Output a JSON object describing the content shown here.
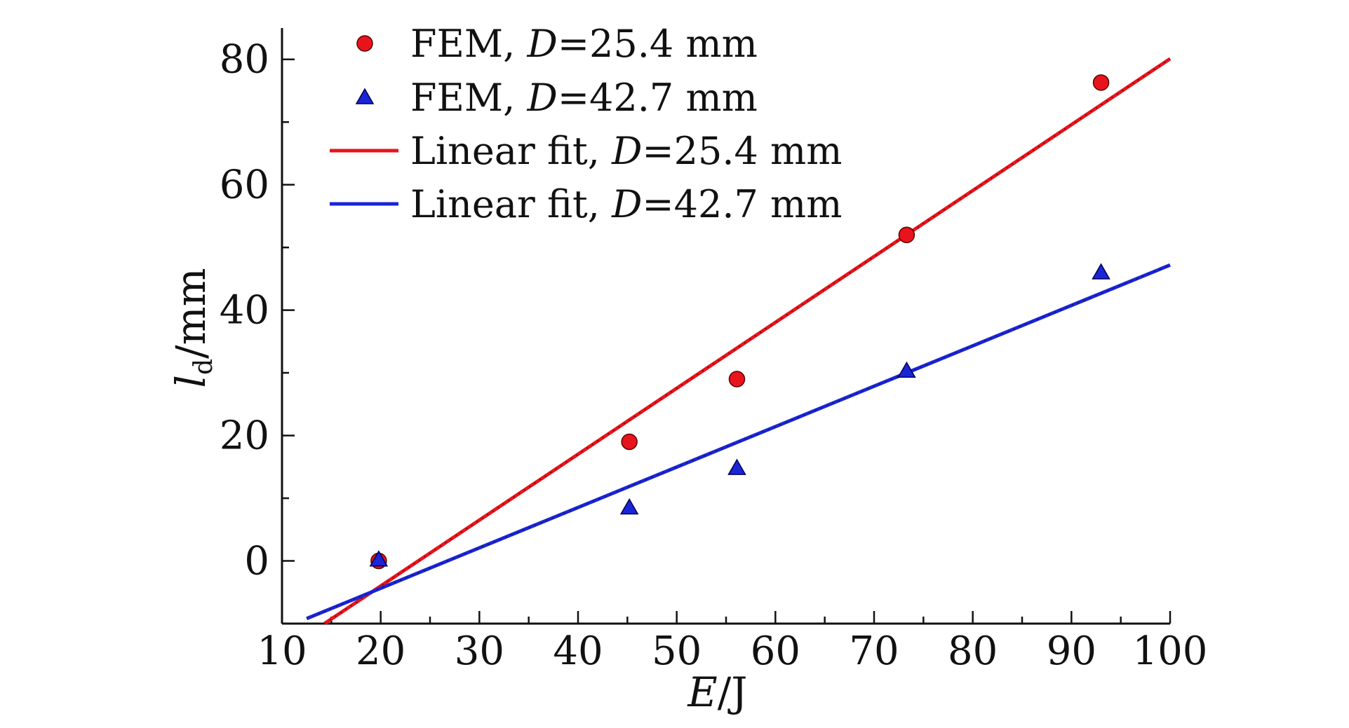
{
  "chart_data": {
    "type": "scatter",
    "xlabel": {
      "italic": "E",
      "rest": "/J"
    },
    "ylabel": {
      "italic": "l",
      "sub": "d",
      "rest": "/mm"
    },
    "xlim": [
      10,
      100
    ],
    "ylim": [
      -10,
      85
    ],
    "x_ticks": [
      10,
      20,
      30,
      40,
      50,
      60,
      70,
      80,
      90,
      100
    ],
    "y_ticks": [
      0,
      20,
      40,
      60,
      80
    ],
    "grid": false,
    "legend_position": "top-left",
    "colors": {
      "red": "#e8141c",
      "blue": "#1a25d6",
      "black": "#111111"
    },
    "series": [
      {
        "kind": "scatter",
        "marker": "circle",
        "color": "#e8141c",
        "label": {
          "pre": "FEM, ",
          "italic": "D",
          "post": "=25.4 mm"
        },
        "points": [
          [
            19.8,
            0
          ],
          [
            45.2,
            19
          ],
          [
            56.1,
            29
          ],
          [
            73.3,
            52
          ],
          [
            93,
            76.3
          ]
        ]
      },
      {
        "kind": "scatter",
        "marker": "triangle",
        "color": "#1a25d6",
        "label": {
          "pre": "FEM, ",
          "italic": "D",
          "post": "=42.7 mm"
        },
        "points": [
          [
            19.8,
            0.2
          ],
          [
            45.2,
            8.5
          ],
          [
            56.1,
            14.8
          ],
          [
            73.3,
            30.3
          ],
          [
            93,
            46
          ]
        ]
      },
      {
        "kind": "line",
        "color": "#e8141c",
        "label": {
          "pre": "Linear fit, ",
          "italic": "D",
          "post": "=25.4 mm"
        },
        "points": [
          [
            14.3,
            -10
          ],
          [
            100,
            80.1
          ]
        ]
      },
      {
        "kind": "line",
        "color": "#1a25d6",
        "label": {
          "pre": "Linear fit, ",
          "italic": "D",
          "post": "=42.7 mm"
        },
        "points": [
          [
            12.5,
            -9.2
          ],
          [
            100,
            47.2
          ]
        ]
      }
    ]
  }
}
